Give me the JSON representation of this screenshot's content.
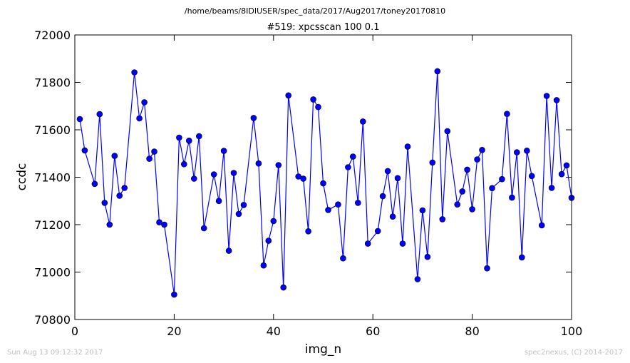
{
  "suptitle": "/home/beams/8IDIUSER/spec_data/2017/Aug2017/toney20170810",
  "footer": {
    "left": "Sun Aug 13 09:12:32 2017",
    "right": "spec2nexus, (C) 2014-2017"
  },
  "chart_data": {
    "type": "line",
    "title": "#519: xpcsscan 100 0.1",
    "xlabel": "img_n",
    "ylabel": "ccdc",
    "xlim": [
      0,
      100
    ],
    "ylim": [
      70800,
      72000
    ],
    "xticks": [
      "0",
      "20",
      "40",
      "60",
      "80",
      "100"
    ],
    "yticks": [
      "70800",
      "71000",
      "71200",
      "71400",
      "71600",
      "71800",
      "72000"
    ],
    "grid": false,
    "marker": "circle",
    "color": "#0000ff",
    "x": [
      1,
      2,
      4,
      5,
      6,
      7,
      8,
      9,
      10,
      12,
      13,
      14,
      15,
      16,
      17,
      18,
      20,
      21,
      22,
      23,
      24,
      25,
      26,
      28,
      29,
      30,
      31,
      32,
      33,
      34,
      36,
      37,
      38,
      39,
      40,
      41,
      42,
      43,
      45,
      46,
      47,
      48,
      49,
      50,
      51,
      53,
      54,
      55,
      56,
      57,
      58,
      59,
      61,
      62,
      63,
      64,
      65,
      66,
      67,
      69,
      70,
      71,
      72,
      73,
      74,
      75,
      77,
      78,
      79,
      80,
      81,
      82,
      83,
      84,
      86,
      87,
      88,
      89,
      90,
      91,
      92,
      94,
      95,
      96,
      97,
      98,
      99,
      100
    ],
    "y": [
      71645,
      71513,
      71372,
      71666,
      71292,
      71200,
      71490,
      71322,
      71355,
      71842,
      71648,
      71716,
      71478,
      71508,
      71210,
      71200,
      70905,
      71567,
      71455,
      71554,
      71394,
      71573,
      71185,
      71412,
      71300,
      71511,
      71090,
      71418,
      71245,
      71283,
      71650,
      71458,
      71028,
      71132,
      71215,
      71451,
      70935,
      71745,
      71403,
      71394,
      71172,
      71728,
      71696,
      71374,
      71262,
      71285,
      71058,
      71442,
      71487,
      71292,
      71635,
      71120,
      71173,
      71320,
      71426,
      71234,
      71396,
      71120,
      71529,
      70970,
      71260,
      71064,
      71462,
      71847,
      71223,
      71594,
      71285,
      71340,
      71432,
      71265,
      71475,
      71515,
      71016,
      71354,
      71392,
      71667,
      71314,
      71505,
      71062,
      71512,
      71405,
      71197,
      71743,
      71355,
      71725,
      71413,
      71450,
      71313
    ]
  }
}
